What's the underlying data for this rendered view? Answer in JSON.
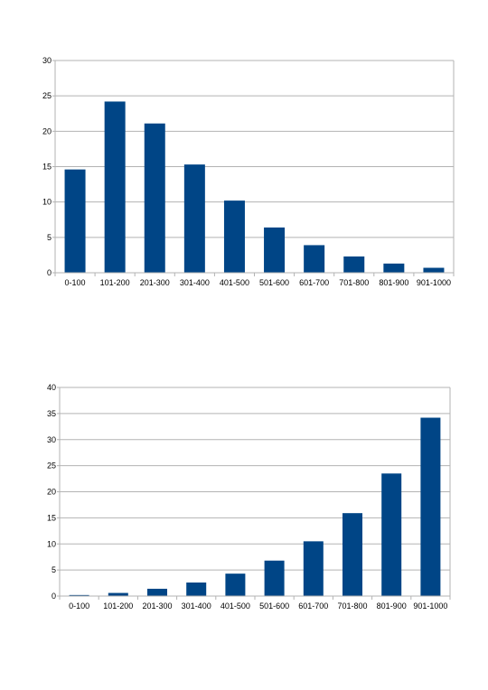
{
  "chart_data": [
    {
      "type": "bar",
      "categories": [
        "0-100",
        "101-200",
        "201-300",
        "301-400",
        "401-500",
        "501-600",
        "601-700",
        "701-800",
        "801-900",
        "901-1000"
      ],
      "values": [
        14.6,
        24.2,
        21.1,
        15.3,
        10.2,
        6.4,
        3.9,
        2.3,
        1.3,
        0.7
      ],
      "title": "",
      "xlabel": "",
      "ylabel": "",
      "ylim": [
        0,
        30
      ],
      "yticks": [
        0,
        5,
        10,
        15,
        20,
        25,
        30
      ],
      "grid": true,
      "legend": "none",
      "bar_color": "#004586"
    },
    {
      "type": "bar",
      "categories": [
        "0-100",
        "101-200",
        "201-300",
        "301-400",
        "401-500",
        "501-600",
        "601-700",
        "701-800",
        "801-900",
        "901-1000"
      ],
      "values": [
        0.2,
        0.6,
        1.4,
        2.6,
        4.3,
        6.8,
        10.5,
        15.9,
        23.5,
        34.2
      ],
      "title": "",
      "xlabel": "",
      "ylabel": "",
      "ylim": [
        0,
        40
      ],
      "yticks": [
        0,
        5,
        10,
        15,
        20,
        25,
        30,
        35,
        40
      ],
      "grid": true,
      "legend": "none",
      "bar_color": "#004586"
    }
  ]
}
